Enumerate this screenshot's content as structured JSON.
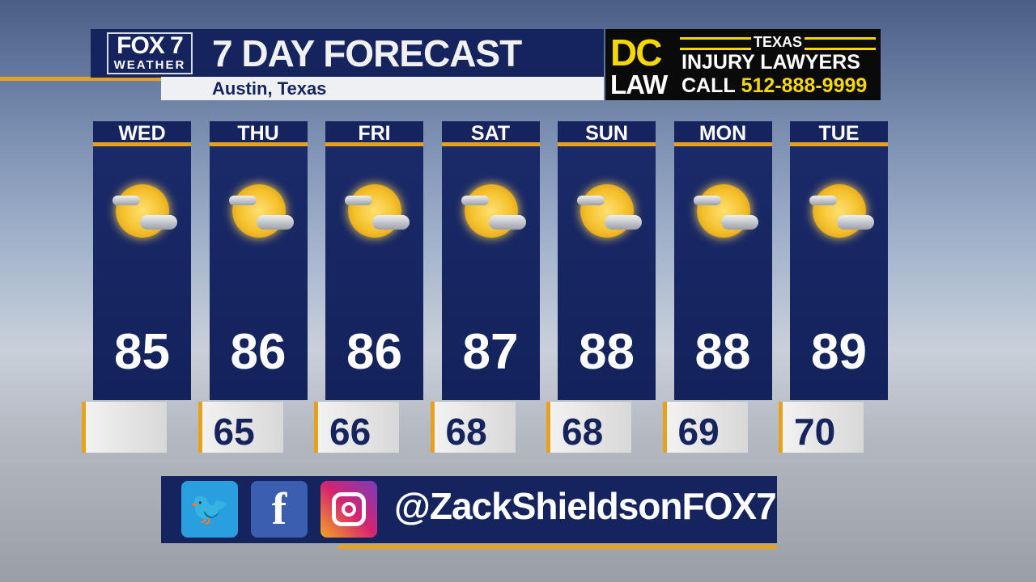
{
  "header": {
    "logo_brand": "FOX 7",
    "logo_sub": "WEATHER",
    "title": "7 DAY FORECAST",
    "location": "Austin, Texas"
  },
  "ad": {
    "dc": "DC",
    "law": "LAW",
    "texas": "TEXAS",
    "line1": "INJURY LAWYERS",
    "call": "CALL",
    "phone": "512-888-9999"
  },
  "days": [
    {
      "day": "WED",
      "high": "85",
      "low": "",
      "icon": "partly-sunny-icon"
    },
    {
      "day": "THU",
      "high": "86",
      "low": "65",
      "icon": "partly-sunny-icon"
    },
    {
      "day": "FRI",
      "high": "86",
      "low": "66",
      "icon": "partly-sunny-icon"
    },
    {
      "day": "SAT",
      "high": "87",
      "low": "68",
      "icon": "partly-sunny-icon"
    },
    {
      "day": "SUN",
      "high": "88",
      "low": "68",
      "icon": "partly-sunny-icon"
    },
    {
      "day": "MON",
      "high": "88",
      "low": "69",
      "icon": "partly-sunny-icon"
    },
    {
      "day": "TUE",
      "high": "89",
      "low": "70",
      "icon": "partly-sunny-icon"
    }
  ],
  "social": {
    "handle": "@ZackShieldsonFOX7",
    "icons": [
      "twitter-icon",
      "facebook-icon",
      "instagram-icon"
    ]
  },
  "colors": {
    "navy": "#16245e",
    "accent": "#e8a11a",
    "ad_yellow": "#f5d800"
  }
}
